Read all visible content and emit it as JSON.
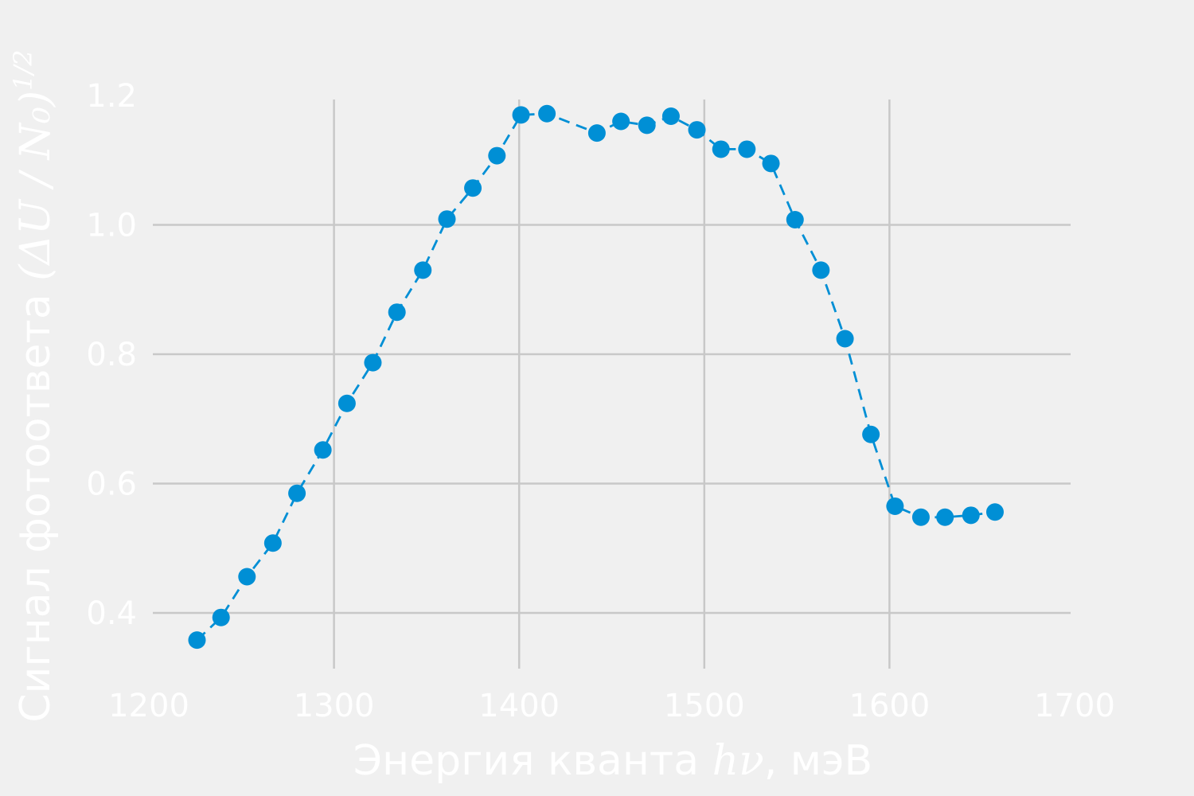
{
  "chart_data": {
    "type": "scatter",
    "line_style": "dashed",
    "marker": "circle",
    "xlabel_text": "Энергия кванта ",
    "xlabel_math": "hν",
    "xlabel_unit": ", мэВ",
    "ylabel_text": "Сигнал фотоответа ",
    "ylabel_math": "(ΔU / N₀)",
    "ylabel_exponent": "1/2",
    "xlim": [
      1200,
      1700
    ],
    "ylim": [
      0.3,
      1.25
    ],
    "xticks": [
      1200,
      1300,
      1400,
      1500,
      1600,
      1700
    ],
    "xtick_labels": [
      "1200",
      "1300",
      "1400",
      "1500",
      "1600",
      "1700"
    ],
    "yticks": [
      0.4,
      0.6,
      0.8,
      1.0,
      1.2
    ],
    "ytick_labels": [
      "0.4",
      "0.6",
      "0.8",
      "1.0",
      "1.2"
    ],
    "grid": true,
    "colors": {
      "series": "#008fd5",
      "grid": "#cbcbcb",
      "background": "#f0f0f0",
      "text": "#ffffff"
    },
    "series": [
      {
        "x": [
          1226,
          1239,
          1253,
          1267,
          1280,
          1294,
          1307,
          1321,
          1334,
          1348,
          1361,
          1375,
          1388,
          1401,
          1415,
          1442,
          1455,
          1469,
          1482,
          1496,
          1509,
          1523,
          1536,
          1549,
          1563,
          1576,
          1590,
          1603,
          1617,
          1630,
          1644,
          1657
        ],
        "y": [
          0.358,
          0.393,
          0.456,
          0.508,
          0.585,
          0.652,
          0.724,
          0.787,
          0.865,
          0.93,
          1.009,
          1.057,
          1.107,
          1.17,
          1.172,
          1.142,
          1.16,
          1.154,
          1.168,
          1.147,
          1.117,
          1.117,
          1.095,
          1.008,
          0.93,
          0.824,
          0.676,
          0.565,
          0.548,
          0.548,
          0.551,
          0.556
        ]
      }
    ]
  }
}
